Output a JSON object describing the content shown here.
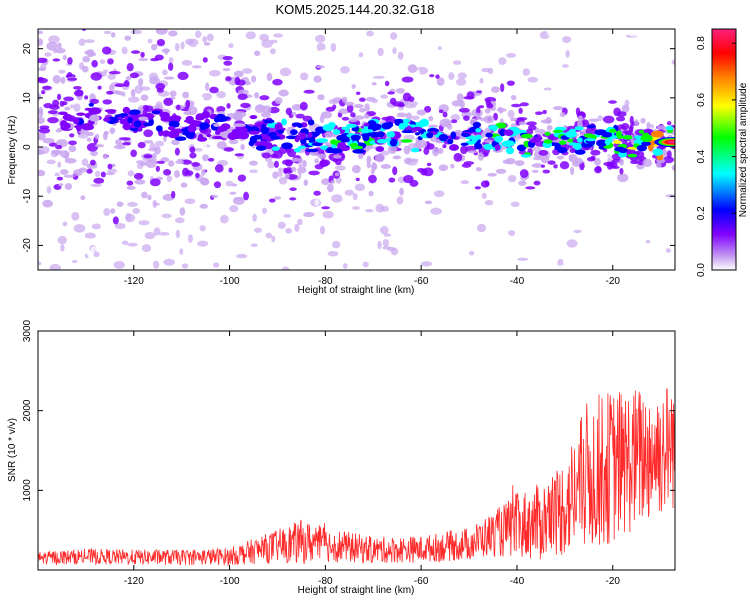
{
  "title": "KOM5.2025.144.20.32.G18",
  "chart_data": [
    {
      "type": "heatmap",
      "xlabel": "Height of straight line (km)",
      "ylabel": "Frequency (Hz)",
      "xlim": [
        -140,
        -7
      ],
      "ylim": [
        -25,
        24
      ],
      "xticks": [
        "-120",
        "-100",
        "-80",
        "-60",
        "-40",
        "-20"
      ],
      "xtick_values": [
        -120,
        -100,
        -80,
        -60,
        -40,
        -20
      ],
      "yticks": [
        "20",
        "10",
        "0",
        "-10",
        "-20"
      ],
      "ytick_values": [
        20,
        10,
        0,
        -10,
        -20
      ],
      "colorbar": {
        "label": "Normalized spectral amplitude",
        "range": [
          0,
          0.85
        ],
        "ticks": [
          "0.0",
          "0.2",
          "0.4",
          "0.6",
          "0.8"
        ],
        "tick_values": [
          0.0,
          0.2,
          0.4,
          0.6,
          0.8
        ],
        "colors": [
          "#ffffff",
          "#c9a6f0",
          "#8000ff",
          "#0000ff",
          "#00ffff",
          "#00ff00",
          "#ffff00",
          "#ff8000",
          "#ff0000",
          "#ff2080"
        ]
      },
      "ridge": {
        "x": [
          -135,
          -125,
          -115,
          -105,
          -95,
          -85,
          -75,
          -65,
          -55,
          -45,
          -35,
          -25,
          -15,
          -8
        ],
        "y": [
          5,
          6,
          5,
          4,
          3,
          2,
          2,
          3,
          2,
          2,
          1,
          2,
          1,
          1
        ],
        "peak_amplitude": [
          0.25,
          0.3,
          0.3,
          0.3,
          0.3,
          0.4,
          0.45,
          0.45,
          0.4,
          0.45,
          0.45,
          0.5,
          0.55,
          0.85
        ]
      },
      "grid": false
    },
    {
      "type": "line",
      "xlabel": "Height of straight line (km)",
      "ylabel": "SNR (10 * v/v)",
      "xlim": [
        -140,
        -7
      ],
      "ylim": [
        0,
        3000
      ],
      "xticks": [
        "-120",
        "-100",
        "-80",
        "-60",
        "-40",
        "-20"
      ],
      "xtick_values": [
        -120,
        -100,
        -80,
        -60,
        -40,
        -20
      ],
      "yticks": [
        "1000",
        "2000",
        "3000"
      ],
      "ytick_values": [
        1000,
        2000,
        3000
      ],
      "series_color": "#ff2a2a",
      "envelope": {
        "x": [
          -140,
          -130,
          -120,
          -110,
          -100,
          -90,
          -85,
          -80,
          -70,
          -60,
          -50,
          -45,
          -40,
          -35,
          -30,
          -25,
          -20,
          -15,
          -10,
          -7
        ],
        "mean": [
          150,
          170,
          160,
          160,
          170,
          300,
          350,
          320,
          250,
          260,
          330,
          450,
          550,
          600,
          800,
          1200,
          1300,
          1400,
          1500,
          1600
        ],
        "amplitude": [
          60,
          70,
          70,
          70,
          80,
          150,
          200,
          160,
          120,
          120,
          150,
          200,
          300,
          350,
          450,
          700,
          700,
          650,
          600,
          600
        ]
      },
      "grid": false
    }
  ]
}
